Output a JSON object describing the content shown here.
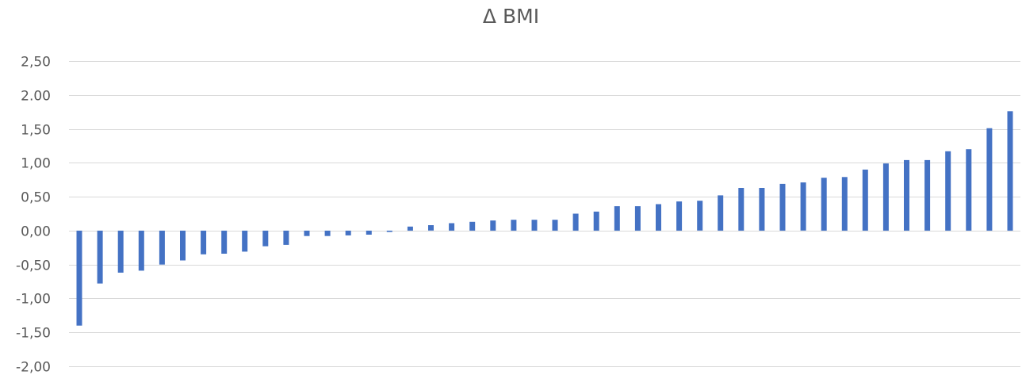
{
  "chart_data": {
    "type": "bar",
    "title": "Δ BMI",
    "xlabel": "",
    "ylabel": "",
    "ylim": [
      -2.0,
      2.5
    ],
    "yticks": [
      2.5,
      2.0,
      1.5,
      1.0,
      0.5,
      0.0,
      -0.5,
      -1.0,
      -1.5,
      -2.0
    ],
    "ytick_labels": [
      "2,50",
      "2.00",
      "1,50",
      "1,00",
      "0,50",
      "0,00",
      "-0,50",
      "-1,00",
      "-1,50",
      "-2,00"
    ],
    "grid": true,
    "legend": "none",
    "color": "#4472c4",
    "values": [
      -1.4,
      -0.78,
      -0.62,
      -0.59,
      -0.5,
      -0.44,
      -0.35,
      -0.34,
      -0.31,
      -0.23,
      -0.21,
      -0.08,
      -0.08,
      -0.07,
      -0.06,
      -0.02,
      0.06,
      0.08,
      0.11,
      0.13,
      0.15,
      0.16,
      0.16,
      0.16,
      0.25,
      0.28,
      0.36,
      0.36,
      0.39,
      0.43,
      0.44,
      0.52,
      0.63,
      0.63,
      0.69,
      0.71,
      0.78,
      0.79,
      0.9,
      0.99,
      1.04,
      1.04,
      1.17,
      1.2,
      1.51,
      1.76
    ]
  }
}
